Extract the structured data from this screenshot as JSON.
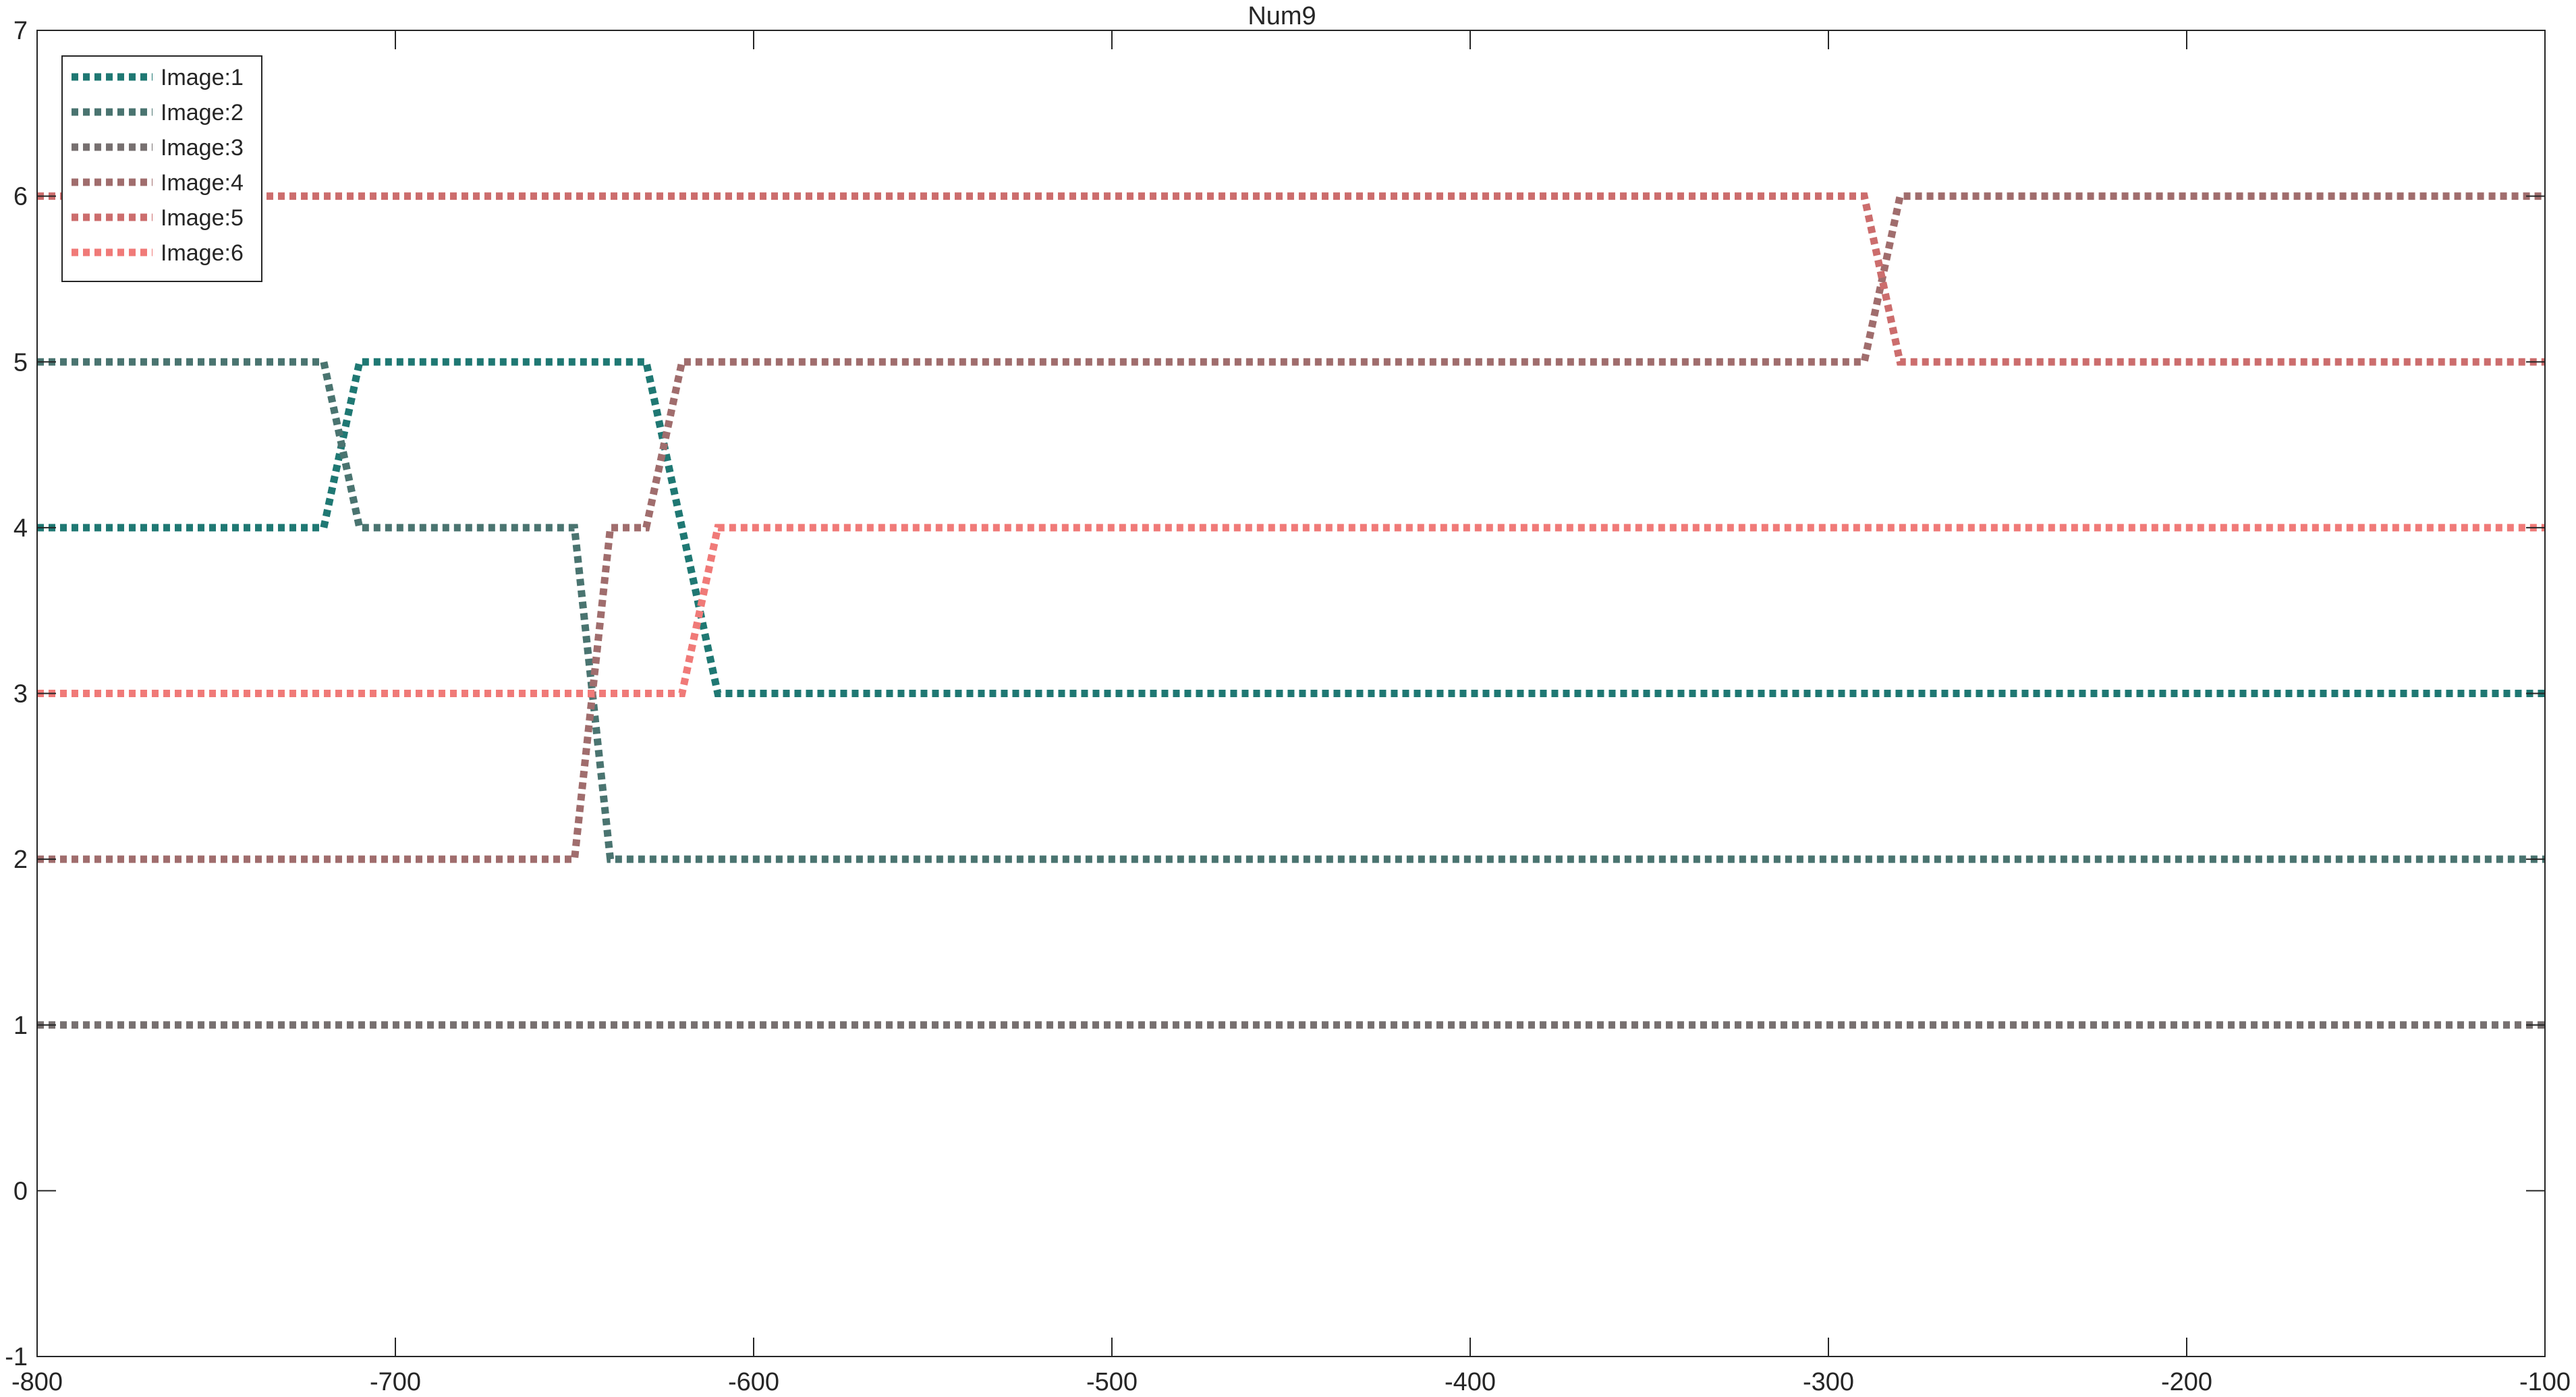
{
  "chart_data": {
    "type": "line",
    "title": "Num9",
    "xlabel": "",
    "ylabel": "",
    "xlim": [
      -800,
      -100
    ],
    "ylim": [
      -1,
      7
    ],
    "xticks": [
      -800,
      -700,
      -600,
      -500,
      -400,
      -300,
      -200,
      -100
    ],
    "yticks": [
      -1,
      0,
      1,
      2,
      3,
      4,
      5,
      6,
      7
    ],
    "xtick_labels": [
      "-800",
      "-700",
      "-600",
      "-500",
      "-400",
      "-300",
      "-200",
      "-100"
    ],
    "ytick_labels": [
      "-1",
      "0",
      "1",
      "2",
      "3",
      "4",
      "5",
      "6",
      "7"
    ],
    "grid": false,
    "line_style": "dotted",
    "legend_position": "top-left",
    "series": [
      {
        "name": "Image:1",
        "color": "#1F7873",
        "x": [
          -800,
          -720,
          -710,
          -630,
          -610,
          -100
        ],
        "y": [
          4,
          4,
          5,
          5,
          3,
          3
        ]
      },
      {
        "name": "Image:2",
        "color": "#4A7470",
        "x": [
          -800,
          -720,
          -710,
          -650,
          -640,
          -100
        ],
        "y": [
          5,
          5,
          4,
          4,
          2,
          2
        ]
      },
      {
        "name": "Image:3",
        "color": "#777070",
        "x": [
          -800,
          -100
        ],
        "y": [
          1,
          1
        ]
      },
      {
        "name": "Image:4",
        "color": "#A06D6D",
        "x": [
          -800,
          -650,
          -640,
          -630,
          -620,
          -290,
          -280,
          -100
        ],
        "y": [
          2,
          2,
          4,
          4,
          5,
          5,
          6,
          6
        ]
      },
      {
        "name": "Image:5",
        "color": "#CC6D6D",
        "x": [
          -800,
          -290,
          -280,
          -100
        ],
        "y": [
          6,
          6,
          5,
          5
        ]
      },
      {
        "name": "Image:6",
        "color": "#F07A78",
        "x": [
          -800,
          -620,
          -610,
          -100
        ],
        "y": [
          3,
          3,
          4,
          4
        ]
      }
    ]
  }
}
